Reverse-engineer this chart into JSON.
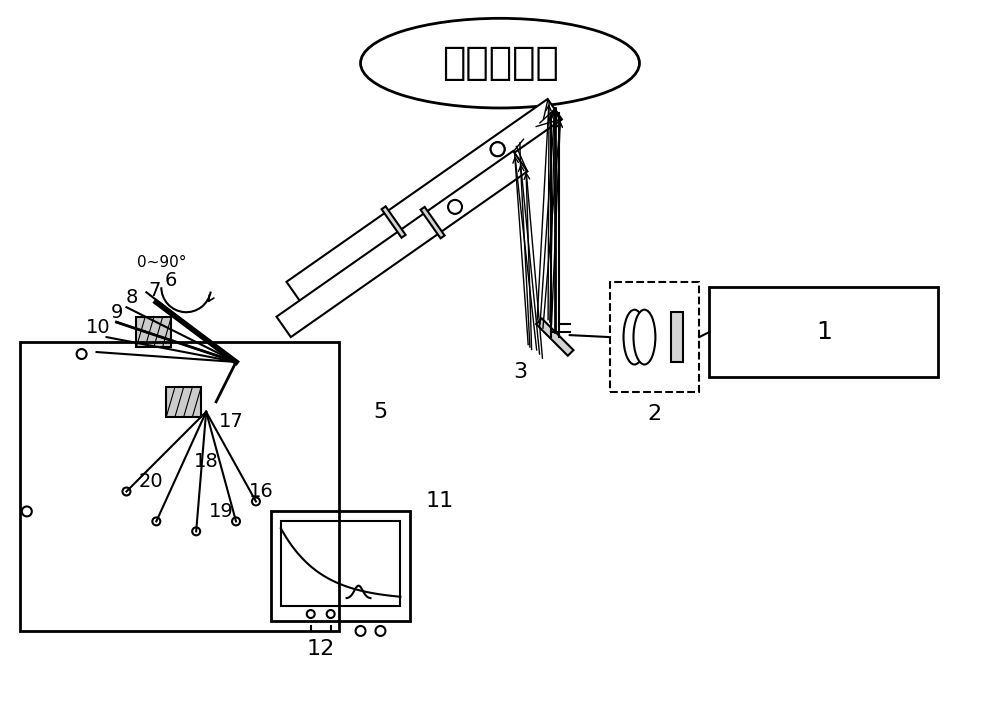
{
  "bg_color": "#ffffff",
  "line_color": "#000000",
  "title_text": "气溶胶和云",
  "label_1": "1",
  "label_2": "2",
  "label_3": "3",
  "label_5": "5",
  "label_6": "6",
  "label_7": "7",
  "label_8": "8",
  "label_9": "9",
  "label_10": "10",
  "label_11": "11",
  "label_12": "12",
  "label_16": "16",
  "label_17": "17",
  "label_18": "18",
  "label_19": "19",
  "label_20": "20",
  "angle_label": "0~90°",
  "font_size_title": 28,
  "font_size_label": 16
}
